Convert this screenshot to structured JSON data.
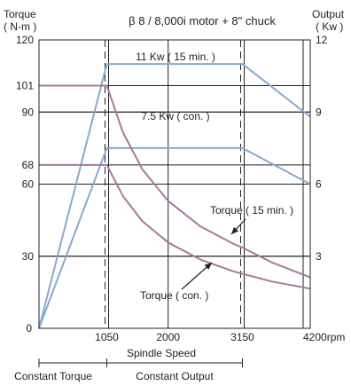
{
  "chart_data": {
    "type": "line",
    "title": "β 8 / 8,000i motor + 8\" chuck",
    "xlabel": "Spindle Speed",
    "x_unit": "rpm",
    "y_left_label": "Torque",
    "y_left_unit": "( N-m )",
    "y_right_label": "Output",
    "y_right_unit": "( Kw )",
    "xlim": [
      0,
      4200
    ],
    "ylim_left": [
      0,
      120
    ],
    "ylim_right": [
      0,
      12
    ],
    "x_ticks": [
      {
        "value": 0,
        "label": "0"
      },
      {
        "value": 1050,
        "label": "1050"
      },
      {
        "value": 2000,
        "label": "2000"
      },
      {
        "value": 3150,
        "label": "3150"
      },
      {
        "value": 4200,
        "label": "4200rpm"
      }
    ],
    "y_left_ticks": [
      {
        "value": 120,
        "label": "120"
      },
      {
        "value": 101,
        "label": "101"
      },
      {
        "value": 90,
        "label": "90"
      },
      {
        "value": 68,
        "label": "68"
      },
      {
        "value": 60,
        "label": "60"
      },
      {
        "value": 30,
        "label": "30"
      }
    ],
    "y_right_ticks": [
      {
        "value": 12,
        "label": "12"
      },
      {
        "value": 9,
        "label": "9"
      },
      {
        "value": 6,
        "label": "6"
      },
      {
        "value": 3,
        "label": "3"
      }
    ],
    "grid": true,
    "series": [
      {
        "name": "11 Kw ( 15 min. )",
        "axis": "right",
        "color": "#88aacc",
        "x": [
          0,
          1050,
          3150,
          4200
        ],
        "y": [
          0,
          11,
          11,
          8.8
        ]
      },
      {
        "name": "7.5 Kw ( con. )",
        "axis": "right",
        "color": "#88aacc",
        "x": [
          0,
          1050,
          3150,
          4200
        ],
        "y": [
          0,
          7.5,
          7.5,
          6
        ]
      },
      {
        "name": "Torque ( 15 min. )",
        "axis": "left",
        "color": "#a8789c",
        "x": [
          0,
          1050,
          1300,
          1600,
          2000,
          2500,
          3000,
          3150,
          3600,
          4200
        ],
        "y": [
          101,
          101,
          81.5,
          66.2,
          53,
          42.4,
          35.3,
          33.6,
          27.5,
          21.2
        ]
      },
      {
        "name": "Torque ( con. )",
        "axis": "left",
        "color": "#a8789c",
        "x": [
          0,
          1050,
          1300,
          1600,
          2000,
          2500,
          3000,
          3150,
          3600,
          4200
        ],
        "y": [
          68,
          68,
          55,
          44.6,
          35.7,
          28.6,
          23.8,
          22.7,
          19.5,
          16.5
        ]
      }
    ],
    "vertical_markers": [
      {
        "x": 1050,
        "style": "dashed"
      },
      {
        "x": 3150,
        "style": "dashed"
      }
    ],
    "region_labels": [
      {
        "text": "Constant Torque",
        "from": 0,
        "to": 1050
      },
      {
        "text": "Constant Output",
        "from": 1050,
        "to": 3150
      }
    ],
    "annotations": [
      {
        "text": "11 Kw ( 15 min. )",
        "series": 0
      },
      {
        "text": "7.5 Kw ( con. )",
        "series": 1
      },
      {
        "text": "Torque ( 15 min. )",
        "series": 2
      },
      {
        "text": "Torque ( con. )",
        "series": 3
      }
    ]
  }
}
